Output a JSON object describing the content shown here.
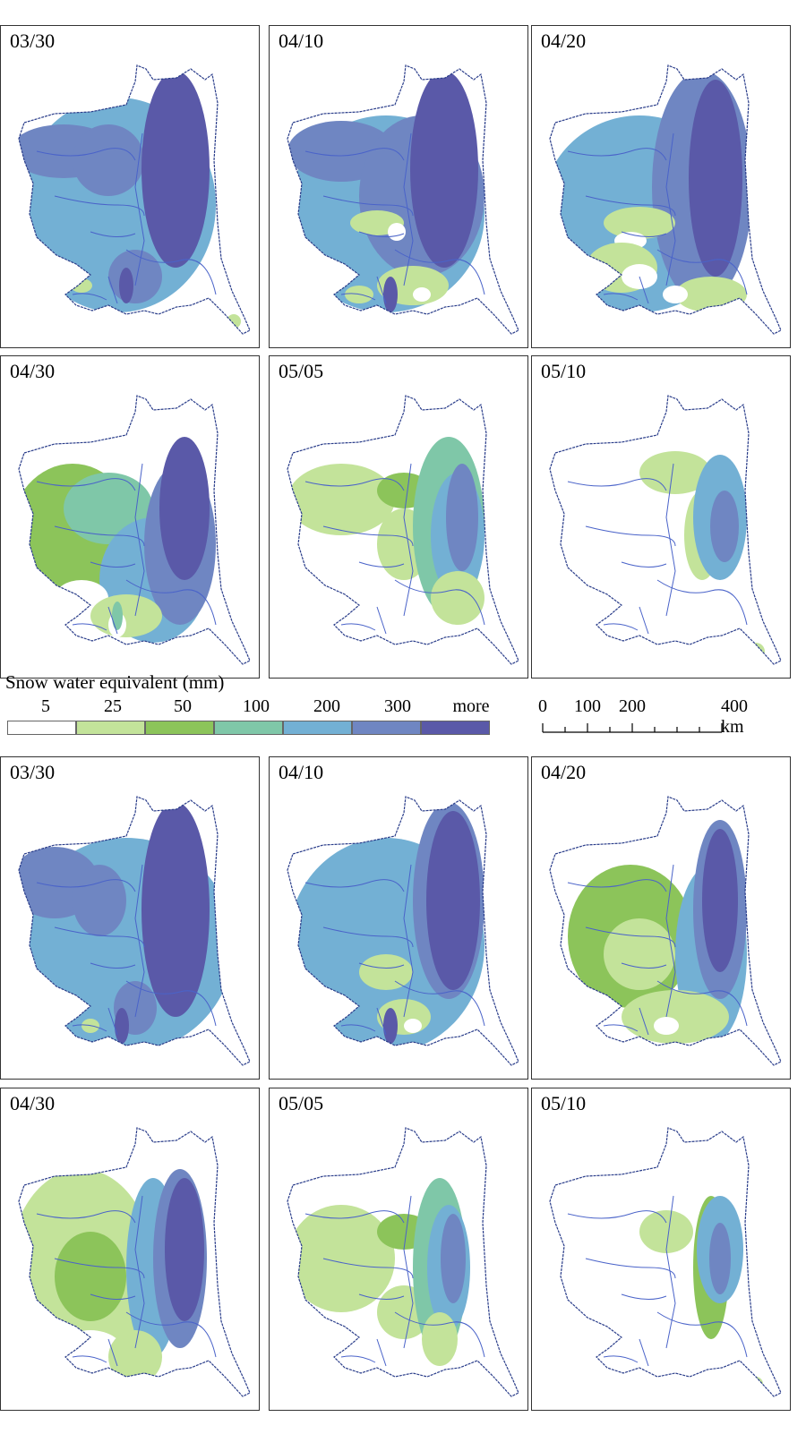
{
  "panels": [
    {
      "date": "03/30",
      "set": 1
    },
    {
      "date": "04/10",
      "set": 1
    },
    {
      "date": "04/20",
      "set": 1
    },
    {
      "date": "04/30",
      "set": 1
    },
    {
      "date": "05/05",
      "set": 1
    },
    {
      "date": "05/10",
      "set": 1
    },
    {
      "date": "03/30",
      "set": 2
    },
    {
      "date": "04/10",
      "set": 2
    },
    {
      "date": "04/20",
      "set": 2
    },
    {
      "date": "04/30",
      "set": 2
    },
    {
      "date": "05/05",
      "set": 2
    },
    {
      "date": "05/10",
      "set": 2
    }
  ],
  "legend": {
    "title": "Snow water equivalent (mm)",
    "classes": [
      {
        "label": "5",
        "color": "#ffffff"
      },
      {
        "label": "25",
        "color": "#c3e39a"
      },
      {
        "label": "50",
        "color": "#8cc45a"
      },
      {
        "label": "100",
        "color": "#7fc7a8"
      },
      {
        "label": "200",
        "color": "#73b0d4"
      },
      {
        "label": "300",
        "color": "#6f86c2"
      },
      {
        "label": "more",
        "color": "#5a59a8"
      }
    ]
  },
  "scale": {
    "labels": [
      "0",
      "100",
      "200",
      "400 km"
    ]
  },
  "colors": {
    "river": "#4a63c9",
    "border": "#2a3d8a"
  }
}
